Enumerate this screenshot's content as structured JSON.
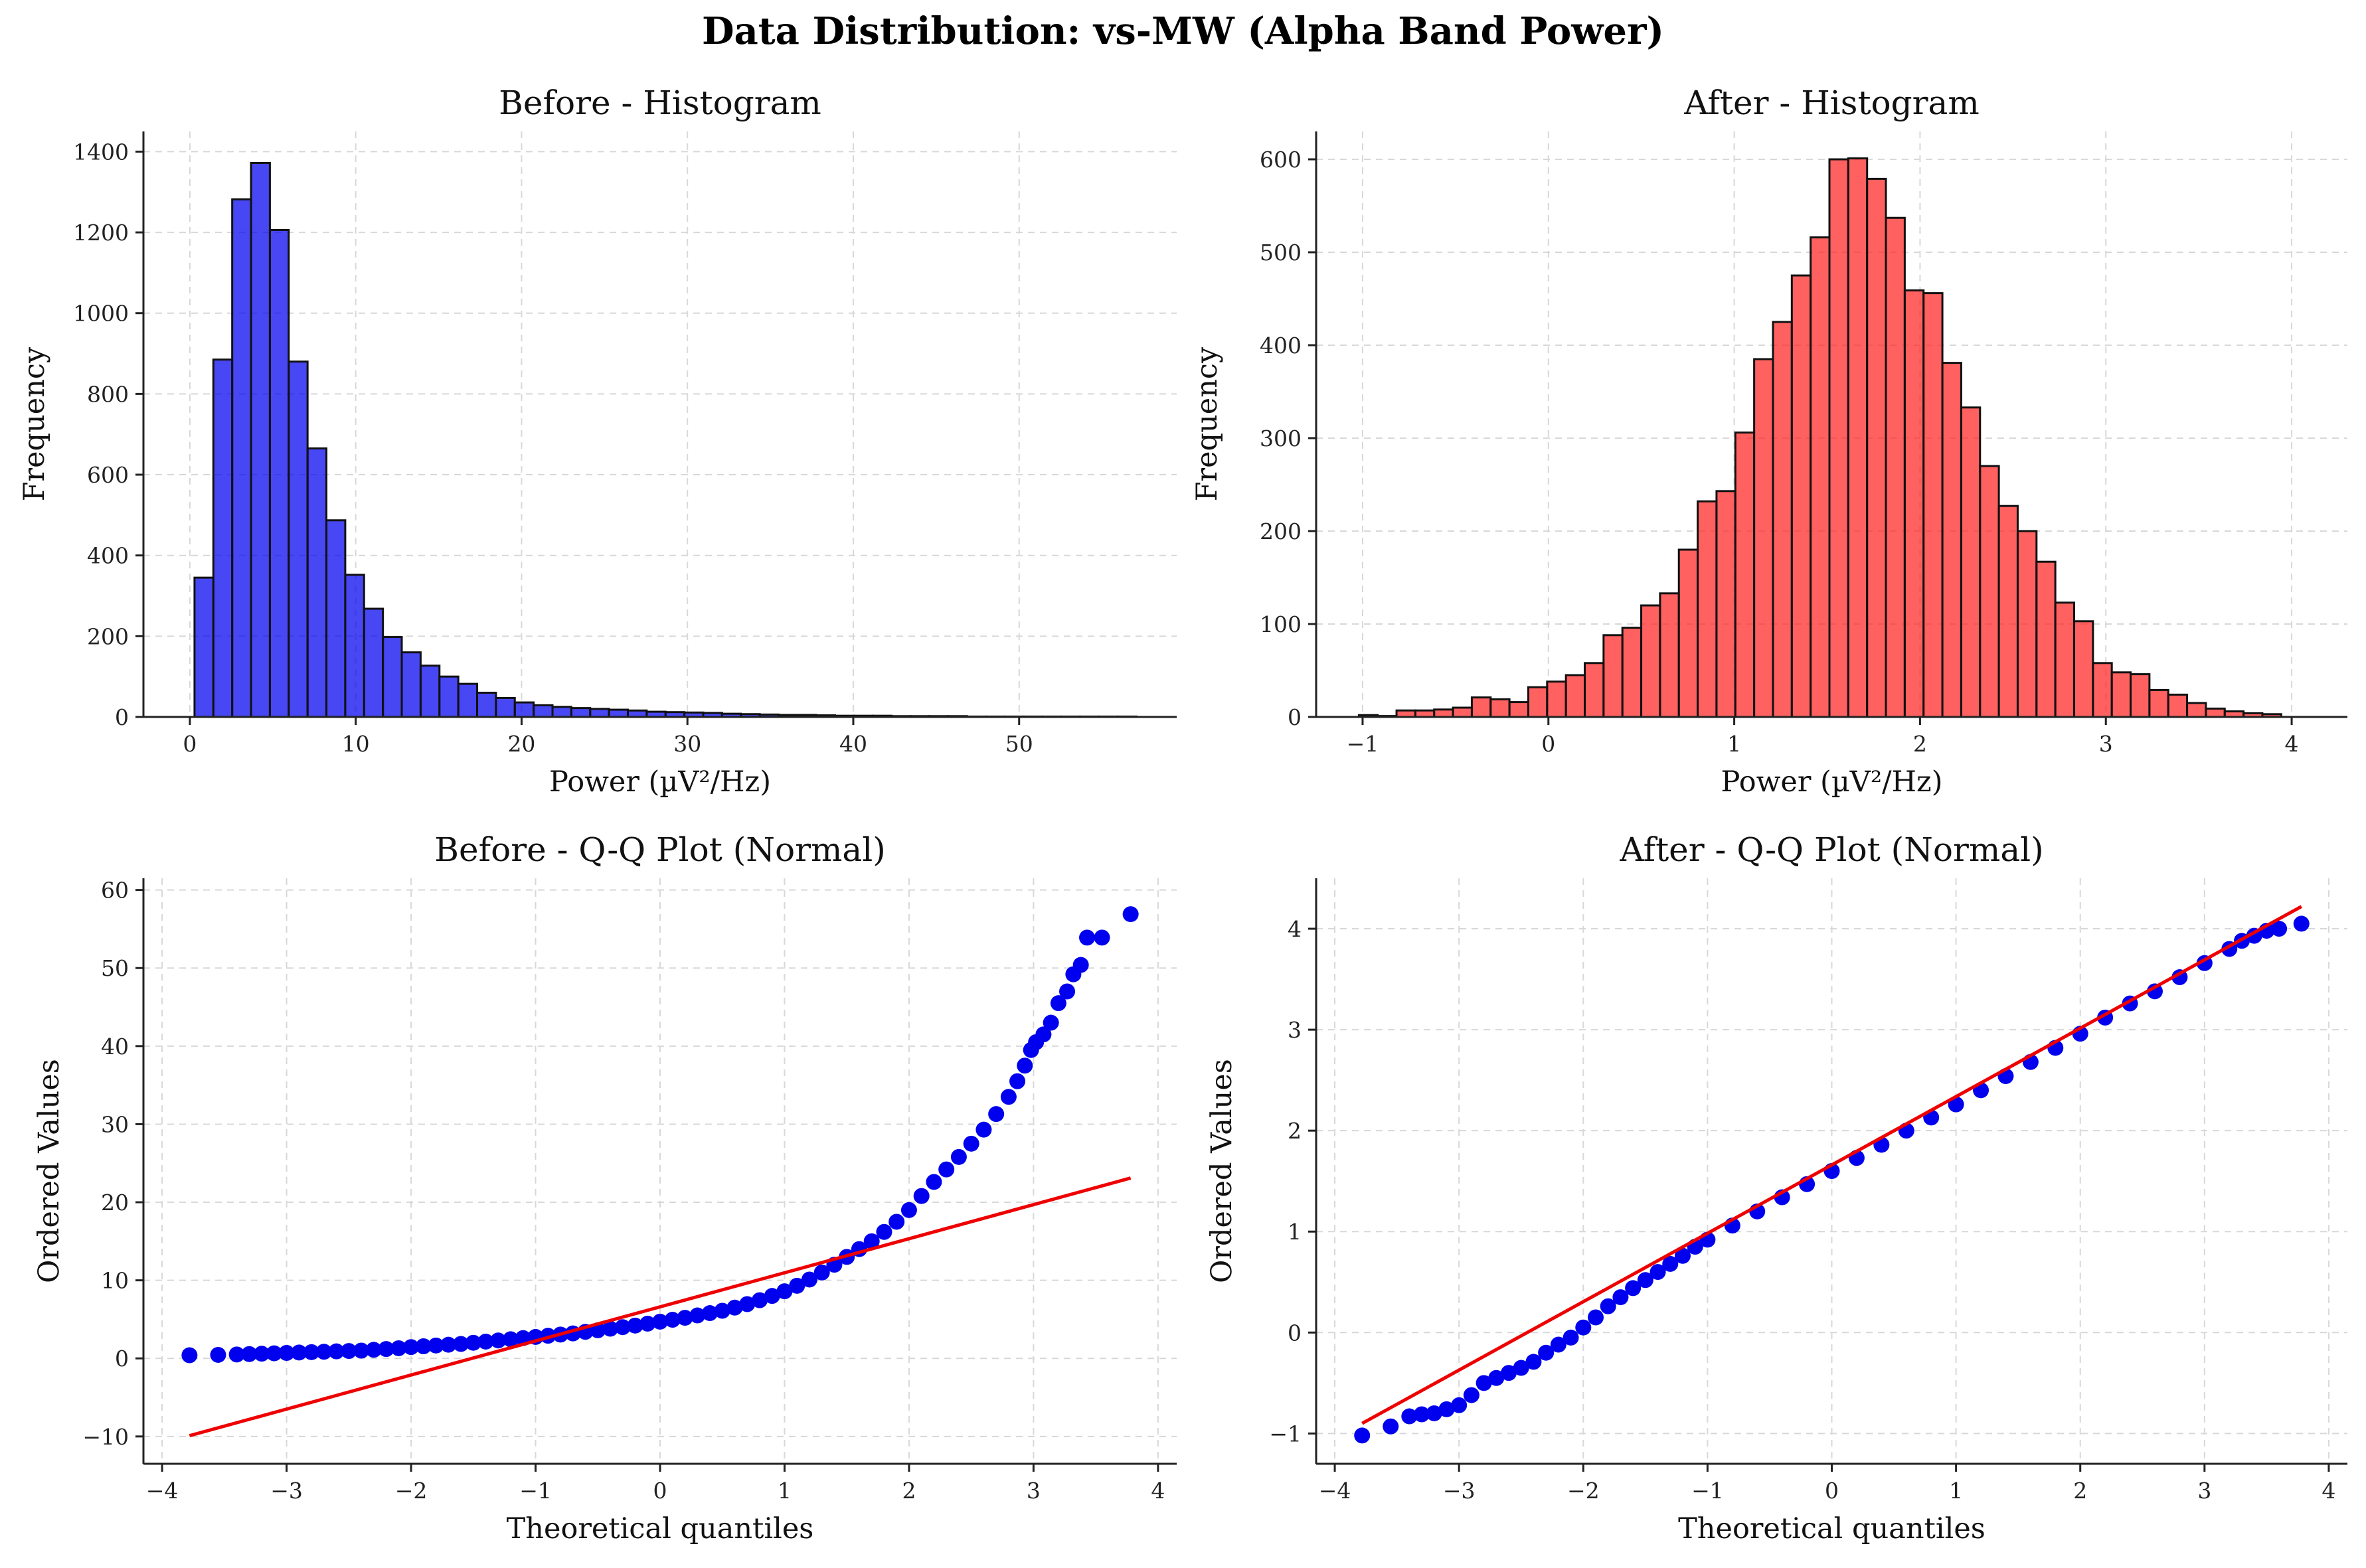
{
  "figure": {
    "title": "Data Distribution: vs-MW (Alpha Band Power)"
  },
  "chart_data": [
    {
      "type": "bar",
      "subtype": "histogram",
      "title": "Before - Histogram",
      "xlabel": "Power (µV²/Hz)",
      "ylabel": "Frequency",
      "xlim": [
        -2.8,
        59.5
      ],
      "ylim": [
        0,
        1450
      ],
      "xticks": [
        0,
        10,
        20,
        30,
        40,
        50
      ],
      "yticks": [
        0,
        200,
        400,
        600,
        800,
        1000,
        1200,
        1400
      ],
      "grid": true,
      "color": "#0000ee",
      "bin_start": 0.28,
      "bin_width": 1.136,
      "values": [
        345,
        885,
        1282,
        1372,
        1206,
        880,
        665,
        487,
        352,
        268,
        198,
        160,
        127,
        100,
        82,
        60,
        47,
        36,
        29,
        25,
        22,
        20,
        18,
        16,
        13,
        12,
        11,
        10,
        8,
        7,
        6,
        5,
        5,
        4,
        3,
        3,
        3,
        2,
        2,
        2,
        2,
        1,
        1,
        1,
        1,
        1,
        1,
        1,
        1,
        1
      ]
    },
    {
      "type": "bar",
      "subtype": "histogram",
      "title": "After - Histogram",
      "xlabel": "Power (µV²/Hz)",
      "ylabel": "Frequency",
      "xlim": [
        -1.25,
        4.3
      ],
      "ylim": [
        0,
        630
      ],
      "xticks": [
        -1,
        0,
        1,
        2,
        3,
        4
      ],
      "yticks": [
        0,
        100,
        200,
        300,
        400,
        500,
        600
      ],
      "grid": true,
      "color": "#ff2222",
      "bin_start": -1.02,
      "bin_width": 0.1013,
      "values": [
        2,
        1,
        7,
        7,
        8,
        10,
        21,
        19,
        16,
        32,
        38,
        45,
        58,
        88,
        96,
        120,
        133,
        180,
        232,
        243,
        306,
        385,
        425,
        475,
        516,
        600,
        601,
        579,
        537,
        459,
        456,
        381,
        333,
        270,
        227,
        200,
        167,
        123,
        103,
        58,
        48,
        46,
        29,
        24,
        15,
        9,
        6,
        4,
        3
      ]
    },
    {
      "type": "scatter",
      "subtype": "qq-plot",
      "title": "Before - Q-Q Plot (Normal)",
      "xlabel": "Theoretical quantiles",
      "ylabel": "Ordered Values",
      "xlim": [
        -4.15,
        4.15
      ],
      "ylim": [
        -13.5,
        61.5
      ],
      "xticks": [
        -4,
        -3,
        -2,
        -1,
        0,
        1,
        2,
        3,
        4
      ],
      "yticks": [
        -10,
        0,
        10,
        20,
        30,
        40,
        50,
        60
      ],
      "grid": true,
      "point_color": "#0000ee",
      "line_color": "#ee0000",
      "fit_line": {
        "x": [
          -3.78,
          3.78
        ],
        "y": [
          -9.9,
          23.1
        ]
      },
      "points": [
        [
          -3.78,
          0.4
        ],
        [
          -3.55,
          0.45
        ],
        [
          -3.4,
          0.5
        ],
        [
          -3.3,
          0.55
        ],
        [
          -3.2,
          0.6
        ],
        [
          -3.1,
          0.65
        ],
        [
          -3.0,
          0.7
        ],
        [
          -2.9,
          0.75
        ],
        [
          -2.8,
          0.8
        ],
        [
          -2.7,
          0.85
        ],
        [
          -2.6,
          0.9
        ],
        [
          -2.5,
          0.95
        ],
        [
          -2.4,
          1.0
        ],
        [
          -2.3,
          1.1
        ],
        [
          -2.2,
          1.2
        ],
        [
          -2.1,
          1.3
        ],
        [
          -2.0,
          1.45
        ],
        [
          -1.9,
          1.55
        ],
        [
          -1.8,
          1.65
        ],
        [
          -1.7,
          1.75
        ],
        [
          -1.6,
          1.85
        ],
        [
          -1.5,
          2.0
        ],
        [
          -1.4,
          2.15
        ],
        [
          -1.3,
          2.3
        ],
        [
          -1.2,
          2.45
        ],
        [
          -1.1,
          2.6
        ],
        [
          -1.0,
          2.75
        ],
        [
          -0.9,
          2.9
        ],
        [
          -0.8,
          3.05
        ],
        [
          -0.7,
          3.2
        ],
        [
          -0.6,
          3.4
        ],
        [
          -0.5,
          3.6
        ],
        [
          -0.4,
          3.8
        ],
        [
          -0.3,
          4.0
        ],
        [
          -0.2,
          4.2
        ],
        [
          -0.1,
          4.45
        ],
        [
          0.0,
          4.7
        ],
        [
          0.1,
          4.95
        ],
        [
          0.2,
          5.2
        ],
        [
          0.3,
          5.5
        ],
        [
          0.4,
          5.8
        ],
        [
          0.5,
          6.1
        ],
        [
          0.6,
          6.5
        ],
        [
          0.7,
          6.95
        ],
        [
          0.8,
          7.45
        ],
        [
          0.9,
          8.0
        ],
        [
          1.0,
          8.6
        ],
        [
          1.1,
          9.3
        ],
        [
          1.2,
          10.1
        ],
        [
          1.3,
          11.0
        ],
        [
          1.4,
          12.0
        ],
        [
          1.5,
          13.0
        ],
        [
          1.6,
          14.0
        ],
        [
          1.7,
          15.0
        ],
        [
          1.8,
          16.2
        ],
        [
          1.9,
          17.5
        ],
        [
          2.0,
          19.0
        ],
        [
          2.1,
          20.8
        ],
        [
          2.2,
          22.6
        ],
        [
          2.3,
          24.2
        ],
        [
          2.4,
          25.8
        ],
        [
          2.5,
          27.5
        ],
        [
          2.6,
          29.3
        ],
        [
          2.7,
          31.3
        ],
        [
          2.8,
          33.5
        ],
        [
          2.87,
          35.5
        ],
        [
          2.93,
          37.5
        ],
        [
          2.98,
          39.5
        ],
        [
          3.02,
          40.5
        ],
        [
          3.08,
          41.5
        ],
        [
          3.14,
          43.0
        ],
        [
          3.2,
          45.5
        ],
        [
          3.27,
          47.0
        ],
        [
          3.32,
          49.2
        ],
        [
          3.38,
          50.4
        ],
        [
          3.43,
          53.9
        ],
        [
          3.55,
          53.9
        ],
        [
          3.78,
          56.9
        ]
      ]
    },
    {
      "type": "scatter",
      "subtype": "qq-plot",
      "title": "After - Q-Q Plot (Normal)",
      "xlabel": "Theoretical quantiles",
      "ylabel": "Ordered Values",
      "xlim": [
        -4.15,
        4.15
      ],
      "ylim": [
        -1.3,
        4.5
      ],
      "xticks": [
        -4,
        -3,
        -2,
        -1,
        0,
        1,
        2,
        3,
        4
      ],
      "yticks": [
        -1,
        0,
        1,
        2,
        3,
        4
      ],
      "grid": true,
      "point_color": "#0000ee",
      "line_color": "#ee0000",
      "fit_line": {
        "x": [
          -3.78,
          3.78
        ],
        "y": [
          -0.9,
          4.22
        ]
      },
      "points": [
        [
          -3.78,
          -1.02
        ],
        [
          -3.55,
          -0.93
        ],
        [
          -3.4,
          -0.83
        ],
        [
          -3.3,
          -0.81
        ],
        [
          -3.2,
          -0.8
        ],
        [
          -3.1,
          -0.76
        ],
        [
          -3.0,
          -0.72
        ],
        [
          -2.9,
          -0.62
        ],
        [
          -2.8,
          -0.5
        ],
        [
          -2.7,
          -0.45
        ],
        [
          -2.6,
          -0.4
        ],
        [
          -2.5,
          -0.35
        ],
        [
          -2.4,
          -0.29
        ],
        [
          -2.3,
          -0.2
        ],
        [
          -2.2,
          -0.12
        ],
        [
          -2.1,
          -0.05
        ],
        [
          -2.0,
          0.05
        ],
        [
          -1.9,
          0.15
        ],
        [
          -1.8,
          0.26
        ],
        [
          -1.7,
          0.35
        ],
        [
          -1.6,
          0.44
        ],
        [
          -1.5,
          0.52
        ],
        [
          -1.4,
          0.6
        ],
        [
          -1.3,
          0.68
        ],
        [
          -1.2,
          0.76
        ],
        [
          -1.1,
          0.85
        ],
        [
          -1.0,
          0.92
        ],
        [
          -0.8,
          1.06
        ],
        [
          -0.6,
          1.2
        ],
        [
          -0.4,
          1.34
        ],
        [
          -0.2,
          1.47
        ],
        [
          0.0,
          1.6
        ],
        [
          0.2,
          1.73
        ],
        [
          0.4,
          1.86
        ],
        [
          0.6,
          2.0
        ],
        [
          0.8,
          2.13
        ],
        [
          1.0,
          2.26
        ],
        [
          1.2,
          2.4
        ],
        [
          1.4,
          2.54
        ],
        [
          1.6,
          2.68
        ],
        [
          1.8,
          2.82
        ],
        [
          2.0,
          2.96
        ],
        [
          2.2,
          3.12
        ],
        [
          2.4,
          3.26
        ],
        [
          2.6,
          3.38
        ],
        [
          2.8,
          3.52
        ],
        [
          3.0,
          3.66
        ],
        [
          3.2,
          3.8
        ],
        [
          3.3,
          3.88
        ],
        [
          3.4,
          3.93
        ],
        [
          3.5,
          3.98
        ],
        [
          3.6,
          4.0
        ],
        [
          3.78,
          4.05
        ]
      ]
    }
  ]
}
